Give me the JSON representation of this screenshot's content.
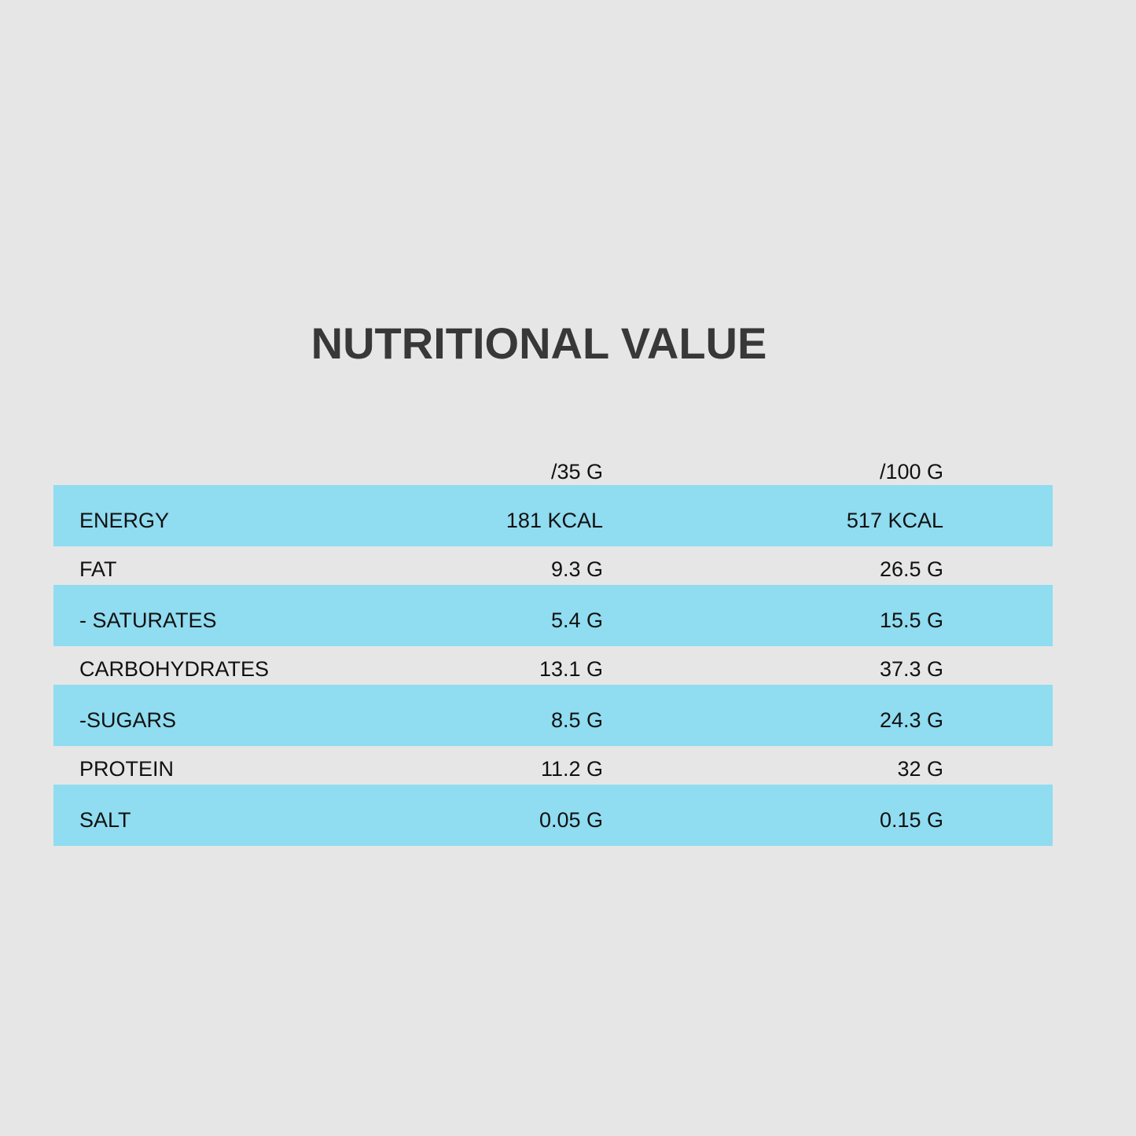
{
  "title": "NUTRITIONAL VALUE",
  "columns": {
    "per_35g": "/35 G",
    "per_100g": "/100 G"
  },
  "rows": [
    {
      "label": "ENERGY",
      "per_35g": "181 KCAL",
      "per_100g": "517 KCAL"
    },
    {
      "label": "FAT",
      "per_35g": "9.3 G",
      "per_100g": "26.5 G"
    },
    {
      "label": "- SATURATES",
      "per_35g": "5.4 G",
      "per_100g": "15.5 G"
    },
    {
      "label": "CARBOHYDRATES",
      "per_35g": "13.1 G",
      "per_100g": "37.3 G"
    },
    {
      "label": "-SUGARS",
      "per_35g": "8.5 G",
      "per_100g": "24.3 G"
    },
    {
      "label": "PROTEIN",
      "per_35g": "11.2 G",
      "per_100g": "32 G"
    },
    {
      "label": "SALT",
      "per_35g": "0.05 G",
      "per_100g": "0.15 G"
    }
  ],
  "colors": {
    "background": "#e6e6e6",
    "stripe": "#90dcf0",
    "title": "#383838",
    "text": "#111111"
  }
}
